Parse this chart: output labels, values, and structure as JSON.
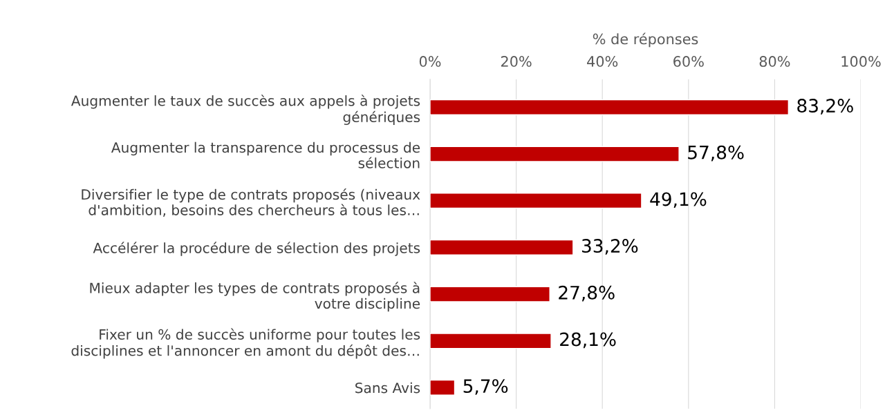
{
  "chart_data": {
    "type": "bar",
    "orientation": "horizontal",
    "xlabel": "% de réponses",
    "categories": [
      "Augmenter le taux de succès aux appels à projets\ngénériques",
      "Augmenter la transparence du processus de\nsélection",
      "Diversifier le type de contrats proposés (niveaux\nd'ambition, besoins des chercheurs à tous les…",
      "Accélérer la procédure de sélection des projets",
      "Mieux adapter les types de contrats proposés à\nvotre discipline",
      "Fixer un % de succès uniforme pour toutes les\ndisciplines et l'annoncer en amont du dépôt des…",
      "Sans Avis"
    ],
    "values": [
      83.2,
      57.8,
      49.1,
      33.2,
      27.8,
      28.1,
      5.7
    ],
    "value_labels": [
      "83,2%",
      "57,8%",
      "49,1%",
      "33,2%",
      "27,8%",
      "28,1%",
      "5,7%"
    ],
    "color": "#c00000",
    "xlim": [
      0,
      100
    ],
    "xticks": [
      {
        "value": 0,
        "label": "0%"
      },
      {
        "value": 20,
        "label": "20%"
      },
      {
        "value": 40,
        "label": "40%"
      },
      {
        "value": 60,
        "label": "60%"
      },
      {
        "value": 80,
        "label": "80%"
      },
      {
        "value": 100,
        "label": "100%"
      }
    ],
    "grid": "x",
    "legend": false
  }
}
